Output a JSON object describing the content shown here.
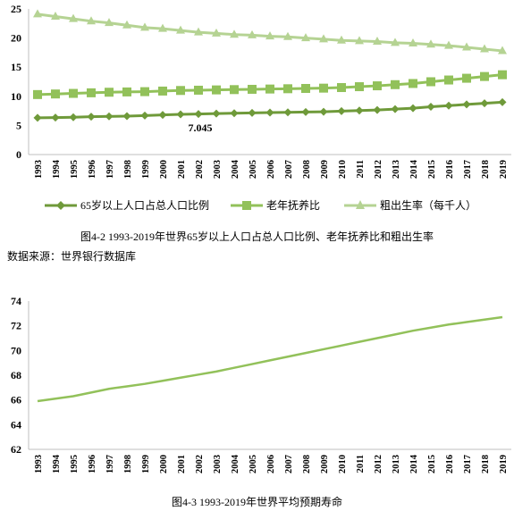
{
  "source_note": "数据来源：世界银行数据库",
  "chart_data": [
    {
      "type": "line",
      "x": [
        "1993",
        "1994",
        "1995",
        "1996",
        "1997",
        "1998",
        "1999",
        "2000",
        "2001",
        "2002",
        "2003",
        "2004",
        "2005",
        "2006",
        "2007",
        "2008",
        "2009",
        "2010",
        "2011",
        "2012",
        "2013",
        "2014",
        "2015",
        "2016",
        "2017",
        "2018",
        "2019"
      ],
      "ylim": [
        0,
        25
      ],
      "yticks": [
        0,
        5,
        10,
        15,
        20,
        25
      ],
      "grid": false,
      "legend_position": "bottom",
      "title": "图4-2   1993-2019年世界65岁以上人口占总人口比例、老年抚养比和粗出生率",
      "annotation": "7.045",
      "series": [
        {
          "name": "65岁以上人口占总人口比例",
          "marker": "diamond",
          "color": "#6f9a3a",
          "values": [
            6.3,
            6.35,
            6.4,
            6.5,
            6.55,
            6.6,
            6.7,
            6.8,
            6.9,
            6.95,
            7.045,
            7.1,
            7.15,
            7.2,
            7.25,
            7.3,
            7.35,
            7.45,
            7.55,
            7.65,
            7.8,
            7.95,
            8.2,
            8.4,
            8.6,
            8.8,
            9.0
          ]
        },
        {
          "name": "老年抚养比",
          "marker": "square",
          "color": "#92c15a",
          "values": [
            10.3,
            10.4,
            10.5,
            10.6,
            10.7,
            10.75,
            10.8,
            10.9,
            11.0,
            11.05,
            11.1,
            11.15,
            11.2,
            11.25,
            11.3,
            11.35,
            11.4,
            11.5,
            11.65,
            11.8,
            12.0,
            12.2,
            12.5,
            12.8,
            13.1,
            13.4,
            13.7
          ]
        },
        {
          "name": "粗出生率（每千人）",
          "marker": "triangle",
          "color": "#b5d393",
          "values": [
            24.1,
            23.7,
            23.3,
            22.9,
            22.6,
            22.2,
            21.8,
            21.6,
            21.3,
            21.0,
            20.8,
            20.6,
            20.5,
            20.3,
            20.2,
            20.0,
            19.8,
            19.6,
            19.5,
            19.4,
            19.2,
            19.1,
            18.9,
            18.7,
            18.4,
            18.1,
            17.8
          ]
        }
      ]
    },
    {
      "type": "line",
      "x": [
        "1993",
        "1994",
        "1995",
        "1996",
        "1997",
        "1998",
        "1999",
        "2000",
        "2001",
        "2002",
        "2003",
        "2004",
        "2005",
        "2006",
        "2007",
        "2008",
        "2009",
        "2010",
        "2011",
        "2012",
        "2013",
        "2014",
        "2015",
        "2016",
        "2017",
        "2018",
        "2019"
      ],
      "ylim": [
        62,
        74
      ],
      "yticks": [
        62,
        64,
        66,
        68,
        70,
        72,
        74
      ],
      "grid": false,
      "title": "图4-3   1993-2019年世界平均预期寿命",
      "series": [
        {
          "color": "#92c15a",
          "values": [
            65.9,
            66.1,
            66.3,
            66.6,
            66.9,
            67.1,
            67.3,
            67.55,
            67.8,
            68.05,
            68.3,
            68.6,
            68.9,
            69.2,
            69.5,
            69.8,
            70.1,
            70.4,
            70.7,
            71.0,
            71.3,
            71.6,
            71.85,
            72.1,
            72.3,
            72.5,
            72.7
          ]
        }
      ]
    }
  ]
}
